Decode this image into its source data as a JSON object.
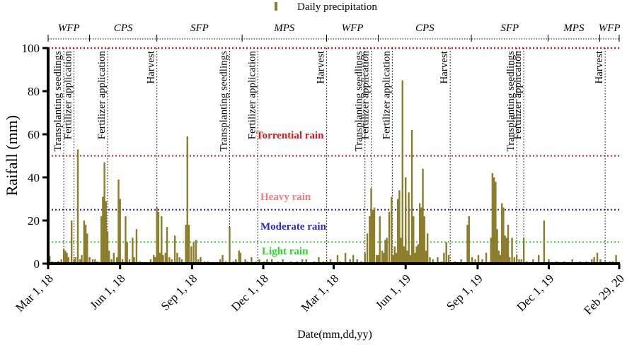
{
  "chart_data": {
    "type": "bar",
    "title": "",
    "xlabel": "Date(mm,dd,yy)",
    "ylabel": "Raifall (mm)",
    "ylim": [
      0,
      100
    ],
    "yticks": [
      0,
      20,
      40,
      60,
      80,
      100
    ],
    "x_range_days": [
      0,
      730
    ],
    "legend": {
      "label": "Daily precipitation",
      "position": "top-center",
      "color": "#8b7d2a"
    },
    "bar_color": "#8b7d2a",
    "xticks": [
      {
        "day": 0,
        "label": "Mar 1, 18"
      },
      {
        "day": 92,
        "label": "Jun 1, 18"
      },
      {
        "day": 184,
        "label": "Sep 1, 18"
      },
      {
        "day": 275,
        "label": "Dec 1, 18"
      },
      {
        "day": 365,
        "label": "Mar 1, 18"
      },
      {
        "day": 457,
        "label": "Jun 1, 19"
      },
      {
        "day": 549,
        "label": "Sep 1, 19"
      },
      {
        "day": 640,
        "label": "Dec 1, 19"
      },
      {
        "day": 730,
        "label": "Feb 29, 20"
      }
    ],
    "thresholds": [
      {
        "value": 100,
        "label": "",
        "color": "#e8141a"
      },
      {
        "value": 50,
        "label": "Torrential rain",
        "color": "#e8141a",
        "label_day": 300
      },
      {
        "value": 25,
        "label": "Heavy rain",
        "color": "#f08080",
        "label_day": 300
      },
      {
        "value": 25,
        "label": "Moderate rain",
        "color": "#2a2acc",
        "label_day": 300,
        "label_value": 17
      },
      {
        "value": 10,
        "label": "Light rain",
        "color": "#22dd22",
        "label_day": 300,
        "label_value": 6
      }
    ],
    "periods": [
      {
        "label": "WFP",
        "start": 0,
        "end": 53
      },
      {
        "label": "CPS",
        "start": 53,
        "end": 139
      },
      {
        "label": "SFP",
        "start": 139,
        "end": 248
      },
      {
        "label": "MPS",
        "start": 248,
        "end": 356
      },
      {
        "label": "WFP",
        "start": 356,
        "end": 422
      },
      {
        "label": "CPS",
        "start": 422,
        "end": 541
      },
      {
        "label": "SFP",
        "start": 541,
        "end": 639
      },
      {
        "label": "MPS",
        "start": 639,
        "end": 705
      },
      {
        "label": "WFP",
        "start": 705,
        "end": 730
      }
    ],
    "events": [
      {
        "day": 20,
        "label": "Transplanting seedlings"
      },
      {
        "day": 33,
        "label": "Fertilizer application"
      },
      {
        "day": 76,
        "label": "Fertilizer application"
      },
      {
        "day": 139,
        "label": "Harvest"
      },
      {
        "day": 232,
        "label": "Transplanting seedlings"
      },
      {
        "day": 268,
        "label": "Fertilizer application"
      },
      {
        "day": 356,
        "label": "Harvest"
      },
      {
        "day": 405,
        "label": "Transplanting seedlings"
      },
      {
        "day": 413,
        "label": "Fertilizer application"
      },
      {
        "day": 440,
        "label": "Fertilizer application"
      },
      {
        "day": 514,
        "label": "Harvest"
      },
      {
        "day": 599,
        "label": "Transplanting seedlings"
      },
      {
        "day": 608,
        "label": "Fertilizer application"
      },
      {
        "day": 712,
        "label": "Harvest"
      }
    ],
    "bars": [
      [
        2,
        3.5
      ],
      [
        5,
        1
      ],
      [
        9,
        0.8
      ],
      [
        13,
        1.2
      ],
      [
        17,
        2
      ],
      [
        20,
        7
      ],
      [
        22,
        6
      ],
      [
        24,
        5
      ],
      [
        26,
        3
      ],
      [
        30,
        20
      ],
      [
        33,
        2
      ],
      [
        35,
        3
      ],
      [
        38,
        53
      ],
      [
        41,
        2
      ],
      [
        43,
        4
      ],
      [
        46,
        20
      ],
      [
        48,
        18
      ],
      [
        50,
        14
      ],
      [
        53,
        3
      ],
      [
        57,
        2
      ],
      [
        60,
        2
      ],
      [
        63,
        1
      ],
      [
        68,
        22
      ],
      [
        70,
        31
      ],
      [
        72,
        47
      ],
      [
        74,
        29
      ],
      [
        76,
        15
      ],
      [
        78,
        6
      ],
      [
        81,
        2
      ],
      [
        84,
        5
      ],
      [
        88,
        3
      ],
      [
        90,
        39
      ],
      [
        92,
        30
      ],
      [
        95,
        2
      ],
      [
        99,
        22
      ],
      [
        101,
        10
      ],
      [
        104,
        2
      ],
      [
        108,
        12
      ],
      [
        110,
        3
      ],
      [
        113,
        16
      ],
      [
        117,
        1
      ],
      [
        131,
        2
      ],
      [
        135,
        4
      ],
      [
        137,
        3
      ],
      [
        139,
        26
      ],
      [
        141,
        24
      ],
      [
        143,
        5
      ],
      [
        145,
        22
      ],
      [
        147,
        4
      ],
      [
        150,
        5
      ],
      [
        152,
        17
      ],
      [
        155,
        3
      ],
      [
        158,
        2
      ],
      [
        162,
        13
      ],
      [
        165,
        5
      ],
      [
        168,
        3
      ],
      [
        171,
        2
      ],
      [
        176,
        18
      ],
      [
        178,
        59
      ],
      [
        180,
        18
      ],
      [
        183,
        8
      ],
      [
        186,
        10
      ],
      [
        189,
        11
      ],
      [
        192,
        2
      ],
      [
        195,
        3
      ],
      [
        200,
        1
      ],
      [
        204,
        1
      ],
      [
        220,
        2
      ],
      [
        223,
        4
      ],
      [
        227,
        1
      ],
      [
        232,
        17
      ],
      [
        237,
        1
      ],
      [
        240,
        2
      ],
      [
        244,
        6
      ],
      [
        246,
        5
      ],
      [
        252,
        2
      ],
      [
        255,
        1
      ],
      [
        260,
        3
      ],
      [
        266,
        1
      ],
      [
        270,
        2
      ],
      [
        276,
        1
      ],
      [
        280,
        2
      ],
      [
        286,
        2
      ],
      [
        294,
        1
      ],
      [
        300,
        2
      ],
      [
        310,
        1
      ],
      [
        318,
        1
      ],
      [
        325,
        2
      ],
      [
        330,
        2
      ],
      [
        340,
        1
      ],
      [
        346,
        3
      ],
      [
        352,
        1
      ],
      [
        356,
        1
      ],
      [
        361,
        2
      ],
      [
        370,
        4
      ],
      [
        373,
        1
      ],
      [
        380,
        5
      ],
      [
        386,
        2
      ],
      [
        390,
        4
      ],
      [
        395,
        2
      ],
      [
        400,
        1
      ],
      [
        405,
        5
      ],
      [
        408,
        14
      ],
      [
        411,
        22
      ],
      [
        413,
        35
      ],
      [
        415,
        25
      ],
      [
        417,
        26
      ],
      [
        420,
        4
      ],
      [
        422,
        4
      ],
      [
        424,
        22
      ],
      [
        427,
        6
      ],
      [
        429,
        5
      ],
      [
        431,
        11
      ],
      [
        433,
        12
      ],
      [
        436,
        24
      ],
      [
        439,
        31
      ],
      [
        441,
        4
      ],
      [
        443,
        8
      ],
      [
        445,
        5
      ],
      [
        447,
        30
      ],
      [
        449,
        34
      ],
      [
        451,
        12
      ],
      [
        453,
        85
      ],
      [
        455,
        8
      ],
      [
        457,
        40
      ],
      [
        459,
        6
      ],
      [
        461,
        33
      ],
      [
        463,
        4
      ],
      [
        465,
        62
      ],
      [
        467,
        22
      ],
      [
        469,
        5
      ],
      [
        471,
        8
      ],
      [
        473,
        9
      ],
      [
        475,
        28
      ],
      [
        477,
        26
      ],
      [
        479,
        44
      ],
      [
        481,
        22
      ],
      [
        483,
        6
      ],
      [
        485,
        14
      ],
      [
        488,
        3
      ],
      [
        492,
        2
      ],
      [
        498,
        3
      ],
      [
        503,
        1
      ],
      [
        506,
        5
      ],
      [
        509,
        10
      ],
      [
        512,
        4
      ],
      [
        520,
        1
      ],
      [
        528,
        2
      ],
      [
        536,
        18
      ],
      [
        538,
        22
      ],
      [
        542,
        3
      ],
      [
        546,
        2
      ],
      [
        550,
        4
      ],
      [
        555,
        2
      ],
      [
        560,
        5
      ],
      [
        566,
        12
      ],
      [
        568,
        42
      ],
      [
        570,
        40
      ],
      [
        572,
        38
      ],
      [
        574,
        16
      ],
      [
        576,
        6
      ],
      [
        578,
        4
      ],
      [
        580,
        28
      ],
      [
        582,
        26
      ],
      [
        584,
        13
      ],
      [
        586,
        12
      ],
      [
        588,
        18
      ],
      [
        590,
        3
      ],
      [
        593,
        12
      ],
      [
        596,
        3
      ],
      [
        599,
        4
      ],
      [
        602,
        2
      ],
      [
        605,
        2
      ],
      [
        608,
        12
      ],
      [
        612,
        1
      ],
      [
        620,
        2
      ],
      [
        627,
        4
      ],
      [
        634,
        20
      ],
      [
        640,
        2
      ],
      [
        650,
        1
      ],
      [
        660,
        1
      ],
      [
        670,
        2
      ],
      [
        680,
        1
      ],
      [
        688,
        1
      ],
      [
        695,
        2
      ],
      [
        698,
        3
      ],
      [
        702,
        5
      ],
      [
        706,
        2
      ],
      [
        712,
        1
      ],
      [
        718,
        1
      ],
      [
        722,
        1
      ],
      [
        726,
        4
      ]
    ]
  }
}
